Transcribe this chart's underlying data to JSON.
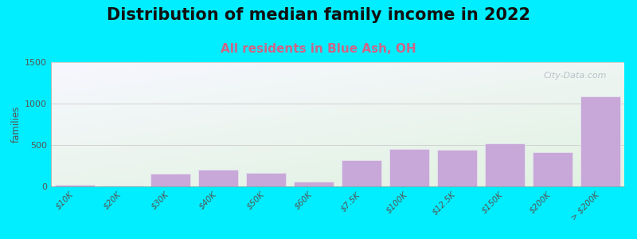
{
  "title": "Distribution of median family income in 2022",
  "subtitle": "All residents in Blue Ash, OH",
  "ylabel": "families",
  "categories": [
    "$10K",
    "$20K",
    "$30K",
    "$40K",
    "$50K",
    "$60K",
    "$7.5K",
    "$100K",
    "$12.5K",
    "$150K",
    "$200K",
    "> $200K"
  ],
  "values": [
    20,
    10,
    150,
    200,
    165,
    55,
    320,
    450,
    440,
    520,
    415,
    1085
  ],
  "bar_color": "#c8a8d8",
  "bar_edge_color": "#e8e8f0",
  "ylim": [
    0,
    1500
  ],
  "yticks": [
    0,
    500,
    1000,
    1500
  ],
  "background_outer": "#00eeff",
  "background_inner_top_left": "#e8f4e0",
  "background_inner_bottom_right": "#f8f8ff",
  "title_fontsize": 15,
  "subtitle_fontsize": 11,
  "subtitle_color": "#cc6688",
  "watermark_text": "City-Data.com",
  "watermark_color": "#b0b8c0"
}
